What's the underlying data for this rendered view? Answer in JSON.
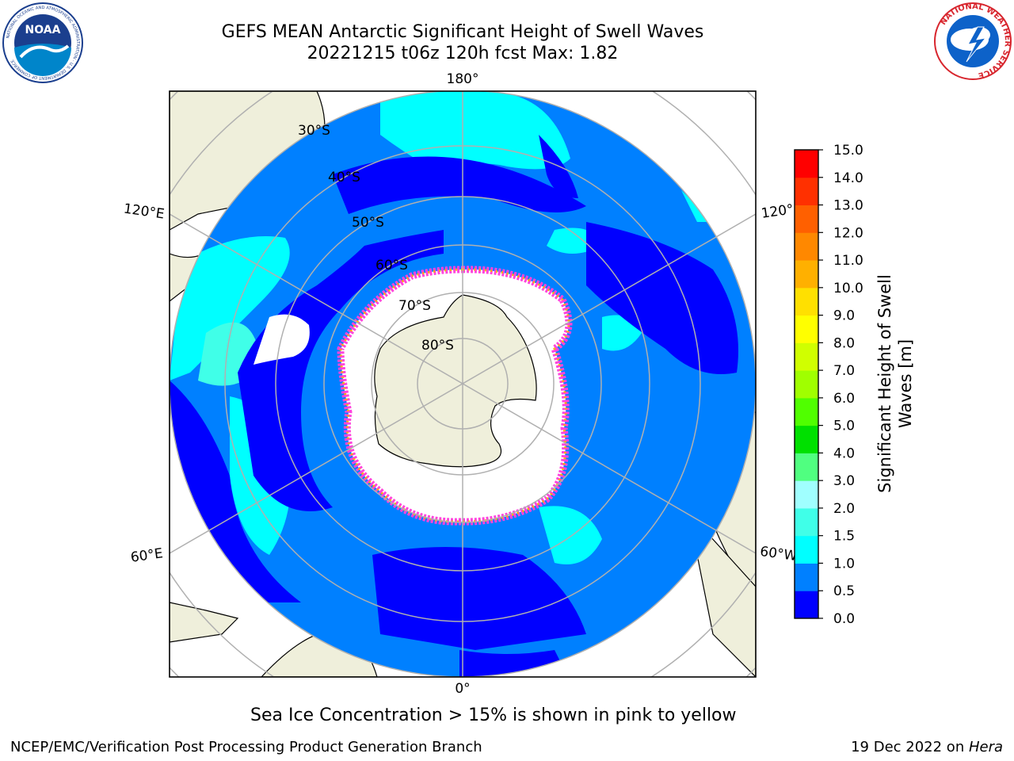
{
  "header": {
    "title_line1": "GEFS MEAN Antarctic Significant Height of Swell Waves",
    "title_line2": "20221215 t06z 120h fcst   Max: 1.82"
  },
  "logos": {
    "left": {
      "text": "NOAA",
      "icon": "noaa-logo-icon",
      "ring_text": "NATIONAL OCEANIC AND ATMOSPHERIC ADMINISTRATION · U.S. DEPARTMENT OF COMMERCE"
    },
    "right": {
      "icon": "nws-logo-icon",
      "ring_text": "NATIONAL WEATHER SERVICE"
    }
  },
  "map": {
    "projection": "south-polar-stereographic",
    "lon_labels": {
      "top": "180°",
      "bottom": "0°",
      "left_upper": "120°E",
      "left_lower": "60°E",
      "right_upper": "120°",
      "right_lower": "60°W"
    },
    "lat_labels": [
      "30°S",
      "40°S",
      "50°S",
      "60°S",
      "70°S",
      "80°S"
    ],
    "colors": {
      "land": "#efefdb",
      "ocean_low": "#0000ff",
      "ocean_mid": "#0080ff",
      "ocean_high": "#00ffff",
      "grid": "#b0b0b0",
      "ice": "#ff44dd"
    }
  },
  "colorbar": {
    "label_line1": "Significant Height of Swell",
    "label_line2": "Waves [m]",
    "ticks": [
      "0.0",
      "0.5",
      "1.0",
      "1.5",
      "2.0",
      "3.0",
      "4.0",
      "5.0",
      "6.0",
      "7.0",
      "8.0",
      "9.0",
      "10.0",
      "11.0",
      "12.0",
      "13.0",
      "14.0",
      "15.0"
    ],
    "colors": [
      "#0000ff",
      "#0080ff",
      "#00ffff",
      "#40ffe8",
      "#a0ffff",
      "#50ff80",
      "#00e000",
      "#50ff00",
      "#a0ff00",
      "#d0ff00",
      "#ffff00",
      "#ffe000",
      "#ffb000",
      "#ff8800",
      "#ff6000",
      "#ff3000",
      "#ff0000"
    ]
  },
  "caption": "Sea Ice Concentration > 15% is shown in pink to yellow",
  "footer": {
    "left": "NCEP/EMC/Verification Post Processing Product Generation Branch",
    "right_prefix": "19 Dec 2022 on ",
    "right_italic": "Hera"
  }
}
